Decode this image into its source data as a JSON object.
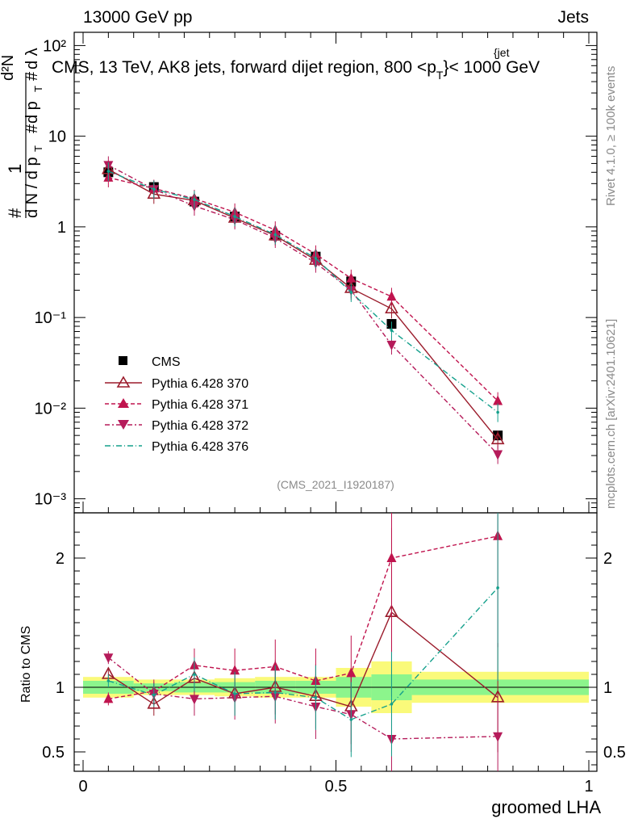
{
  "header": {
    "left": "13000 GeV pp",
    "right": "Jets"
  },
  "title": "CMS, 13 TeV, AK8 jets, forward dijet region, 800 <p",
  "title_sub": "T",
  "title_sup": "{jet",
  "title_tail": "}< 1000 GeV",
  "ylabel_main": {
    "hash1": "#",
    "one": "1",
    "dN": "d N / d p",
    "T": "T",
    "hash2": "#",
    "dpT": "d p",
    "hash3": "#",
    "d2N": "d²N",
    "dlambda": "d λ"
  },
  "side_text": {
    "rivet": "Rivet 4.1.0, ≥ 100k events",
    "mcplots": "mcplots.cern.ch [arXiv:2401.10621]"
  },
  "analysis_id": "(CMS_2021_I1920187)",
  "legend": {
    "cms": "CMS",
    "s370": "Pythia 6.428 370",
    "s371": "Pythia 6.428 371",
    "s372": "Pythia 6.428 372",
    "s376": "Pythia 6.428 376"
  },
  "colors": {
    "cms": "#000000",
    "s370": "#9b1c2c",
    "s371": "#c0144e",
    "s372": "#b51b5a",
    "s376": "#14a08c",
    "band_green": "#8cf58c",
    "band_yellow": "#fafa7a"
  },
  "chart_data": [
    {
      "type": "scatter",
      "panel": "main",
      "yscale": "log",
      "ylim": [
        0.0007,
        140
      ],
      "xlim": [
        0,
        1
      ],
      "yticks": [
        "10⁻³",
        "10⁻²",
        "10⁻¹",
        "1",
        "10",
        "10²"
      ],
      "x": [
        0.05,
        0.14,
        0.22,
        0.3,
        0.38,
        0.46,
        0.53,
        0.61,
        0.82
      ],
      "series": [
        {
          "name": "CMS",
          "values": [
            4.0,
            2.75,
            1.9,
            1.3,
            0.8,
            0.47,
            0.25,
            0.085,
            0.005
          ]
        },
        {
          "name": "Pythia 6.428 370",
          "values": [
            4.3,
            2.3,
            1.95,
            1.25,
            0.8,
            0.43,
            0.21,
            0.125,
            0.0045
          ]
        },
        {
          "name": "Pythia 6.428 371",
          "values": [
            3.5,
            2.65,
            2.05,
            1.45,
            0.92,
            0.5,
            0.27,
            0.17,
            0.012
          ]
        },
        {
          "name": "Pythia 6.428 372",
          "values": [
            4.8,
            2.6,
            1.7,
            1.2,
            0.75,
            0.4,
            0.2,
            0.05,
            0.0031
          ]
        },
        {
          "name": "Pythia 6.428 376",
          "values": [
            4.1,
            2.6,
            2.0,
            1.3,
            0.82,
            0.45,
            0.19,
            0.072,
            0.009
          ]
        }
      ]
    },
    {
      "type": "line",
      "panel": "ratio",
      "ylabel": "Ratio to CMS",
      "xlabel": "groomed LHA",
      "ylim": [
        0.35,
        2.35
      ],
      "yticks": [
        "0.5",
        "1",
        "2"
      ],
      "xticks": [
        "0",
        "0.5",
        "1"
      ],
      "x": [
        0.05,
        0.14,
        0.22,
        0.3,
        0.38,
        0.46,
        0.53,
        0.61,
        0.82
      ],
      "series": [
        {
          "name": "Pythia 6.428 370",
          "values": [
            1.1,
            0.87,
            1.07,
            0.95,
            1.0,
            0.93,
            0.85,
            1.58,
            0.92
          ]
        },
        {
          "name": "Pythia 6.428 371",
          "values": [
            0.91,
            0.97,
            1.17,
            1.13,
            1.16,
            1.05,
            1.11,
            2.0,
            2.17
          ]
        },
        {
          "name": "Pythia 6.428 372",
          "values": [
            1.23,
            0.95,
            0.91,
            0.92,
            0.93,
            0.85,
            0.79,
            0.6,
            0.62
          ]
        },
        {
          "name": "Pythia 6.428 376",
          "values": [
            1.05,
            0.94,
            1.1,
            0.95,
            0.96,
            0.92,
            0.75,
            0.87,
            1.77
          ]
        }
      ],
      "cms_band": {
        "edges": [
          0,
          0.1,
          0.18,
          0.26,
          0.34,
          0.42,
          0.5,
          0.57,
          0.65,
          1.0
        ],
        "green": [
          0.05,
          0.03,
          0.04,
          0.04,
          0.05,
          0.05,
          0.08,
          0.1,
          0.06
        ],
        "yellow": [
          0.08,
          0.06,
          0.06,
          0.07,
          0.08,
          0.08,
          0.15,
          0.2,
          0.12
        ]
      }
    }
  ]
}
